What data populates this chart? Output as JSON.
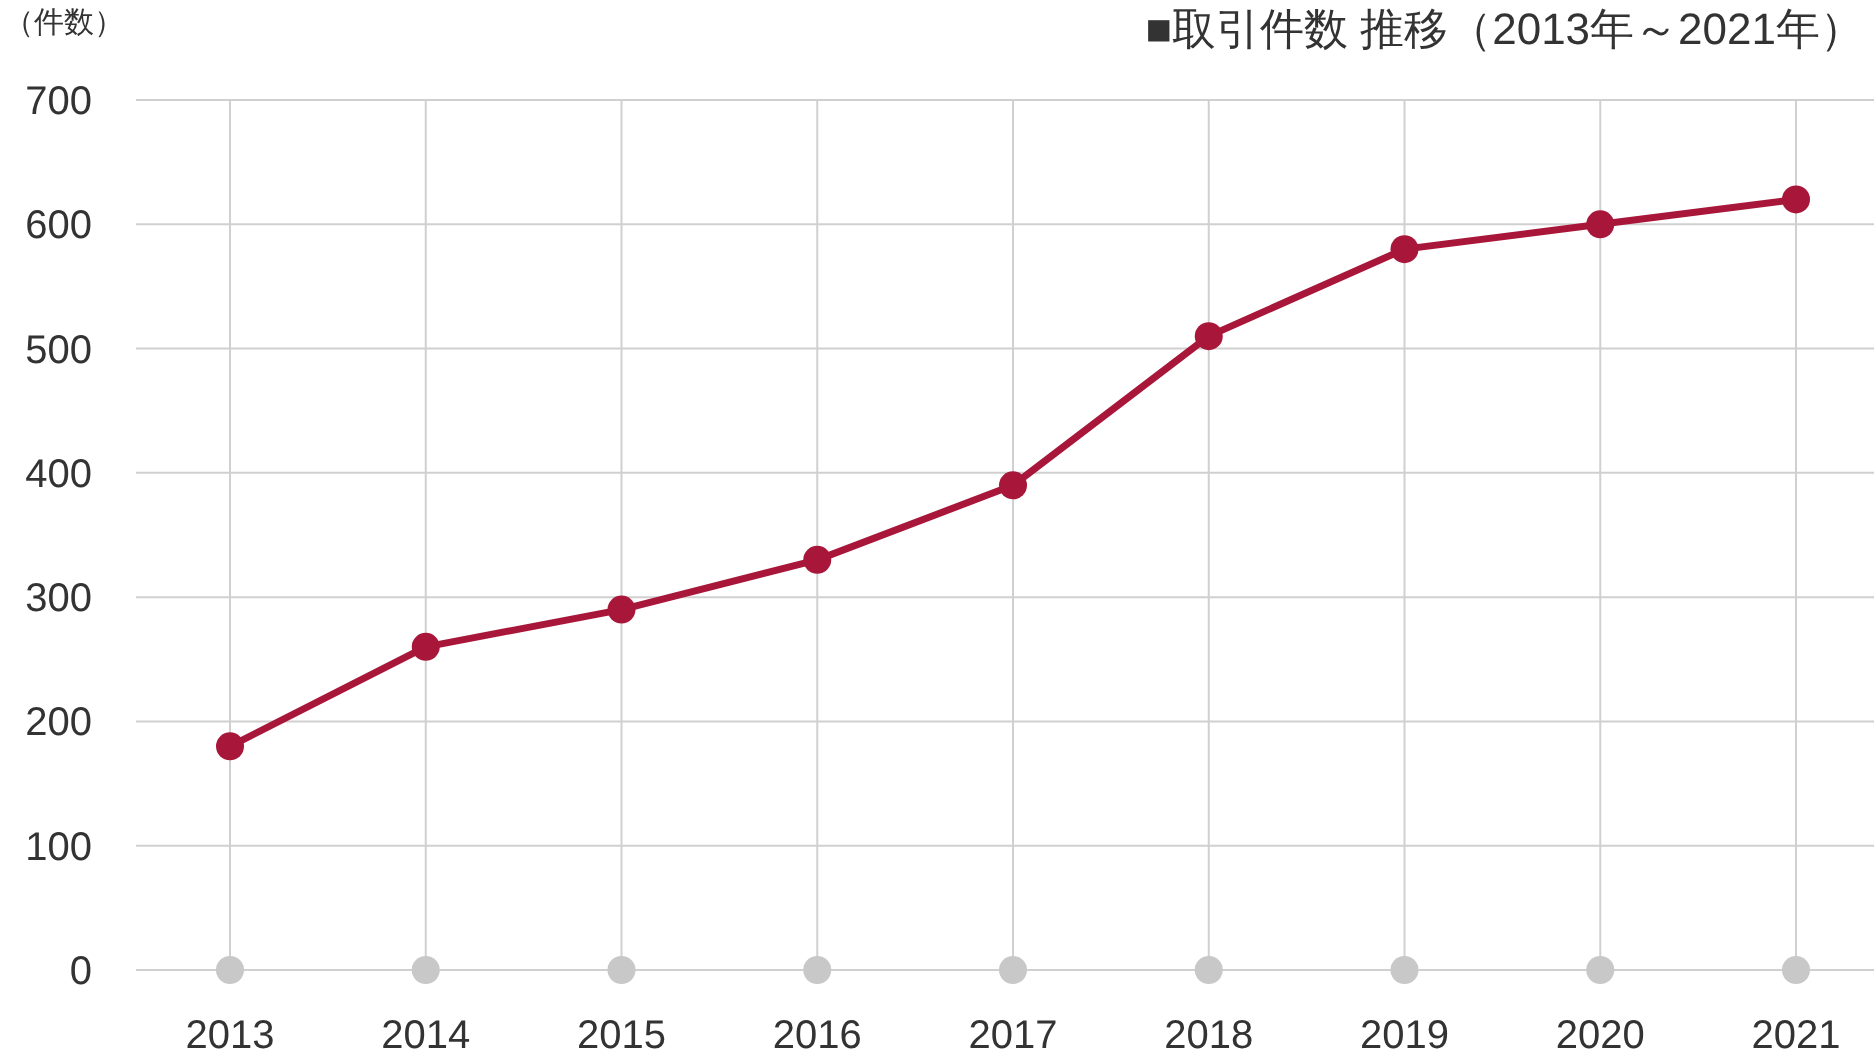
{
  "chart_data": {
    "type": "line",
    "title": "■取引件数 推移（2013年～2021年）",
    "ylabel": "（件数）",
    "categories": [
      "2013",
      "2014",
      "2015",
      "2016",
      "2017",
      "2018",
      "2019",
      "2020",
      "2021"
    ],
    "series": [
      {
        "type": "scatter",
        "color": "#c8c8c8",
        "values": [
          0,
          0,
          0,
          0,
          0,
          0,
          0,
          0,
          0
        ]
      },
      {
        "color": "#a8173a",
        "values": [
          180,
          260,
          290,
          330,
          390,
          510,
          580,
          600,
          620
        ]
      }
    ],
    "ylim": [
      0,
      700
    ],
    "yticks": [
      0,
      100,
      200,
      300,
      400,
      500,
      600,
      700
    ],
    "grid": true,
    "marker": "circle",
    "line_style": "solid"
  }
}
